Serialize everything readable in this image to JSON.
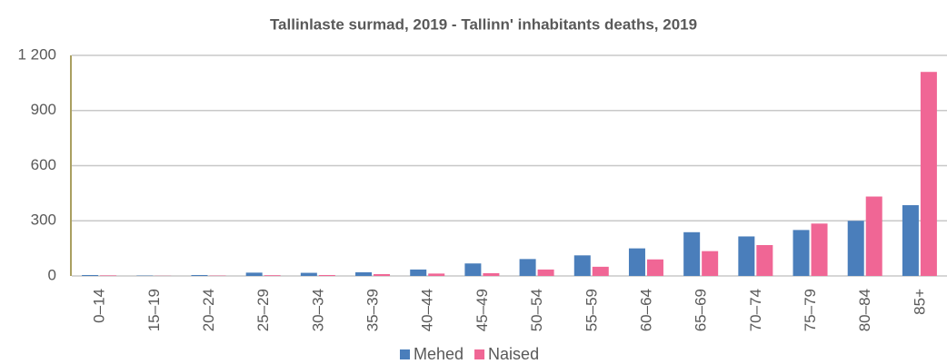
{
  "chart_data": {
    "type": "bar",
    "title": "Tallinlaste surmad, 2019 - Tallinn' inhabitants deaths, 2019",
    "categories": [
      "0–14",
      "15–19",
      "20–24",
      "25–29",
      "30–34",
      "35–39",
      "40–44",
      "45–49",
      "50–54",
      "55–59",
      "60–64",
      "65–69",
      "70–74",
      "75–79",
      "80–84",
      "85+"
    ],
    "series": [
      {
        "name": "Mehed",
        "color": "#4a7ebb",
        "values": [
          5,
          2,
          5,
          18,
          17,
          20,
          35,
          68,
          92,
          112,
          150,
          238,
          215,
          250,
          300,
          385
        ]
      },
      {
        "name": "Naised",
        "color": "#f06695",
        "values": [
          3,
          1,
          2,
          4,
          5,
          10,
          13,
          15,
          35,
          50,
          90,
          135,
          168,
          285,
          432,
          1110
        ]
      }
    ],
    "ylim": [
      0,
      1200
    ],
    "yticks": [
      0,
      300,
      600,
      900,
      {
        "value": 1200,
        "label": "1 200"
      }
    ],
    "grid": true,
    "legend": "bottom"
  }
}
